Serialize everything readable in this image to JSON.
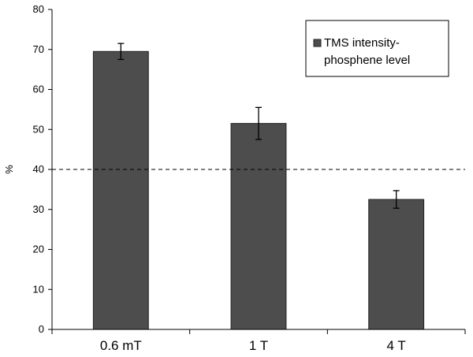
{
  "chart_data": {
    "type": "bar",
    "categories": [
      "0.6 mT",
      "1 T",
      "4 T"
    ],
    "series": [
      {
        "name": "TMS intensity-phosphene level",
        "values": [
          69.5,
          51.5,
          32.5
        ],
        "error": [
          2.0,
          4.0,
          2.2
        ]
      }
    ],
    "xlabel": "",
    "ylabel": "%",
    "ylim": [
      0,
      80
    ],
    "yticks": [
      0,
      10,
      20,
      30,
      40,
      50,
      60,
      70,
      80
    ],
    "reference_line": {
      "y": 40,
      "style": "dashed"
    },
    "legend": {
      "position": "top-right",
      "lines": [
        "TMS intensity-",
        "phosphene level"
      ]
    },
    "grid": false,
    "bar_color": "#4d4d4d"
  }
}
